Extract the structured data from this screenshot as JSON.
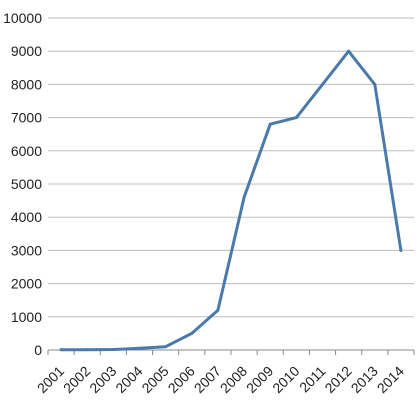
{
  "colors": {
    "series": "#4a7aab",
    "grid": "#bdbdbd",
    "text": "#222222"
  },
  "chart_data": {
    "type": "line",
    "title": "",
    "xlabel": "",
    "ylabel": "",
    "grid": true,
    "legend": "none",
    "ylim": [
      0,
      10000
    ],
    "yticks": [
      0,
      1000,
      2000,
      3000,
      4000,
      5000,
      6000,
      7000,
      8000,
      9000,
      10000
    ],
    "categories": [
      "2001",
      "2002",
      "2003",
      "2004",
      "2005",
      "2006",
      "2007",
      "2008",
      "2009",
      "2010",
      "2011",
      "2012",
      "2013",
      "2014"
    ],
    "series": [
      {
        "values": [
          10,
          10,
          15,
          50,
          100,
          500,
          1200,
          4600,
          6800,
          7000,
          8000,
          9000,
          8000,
          3000
        ]
      }
    ]
  }
}
